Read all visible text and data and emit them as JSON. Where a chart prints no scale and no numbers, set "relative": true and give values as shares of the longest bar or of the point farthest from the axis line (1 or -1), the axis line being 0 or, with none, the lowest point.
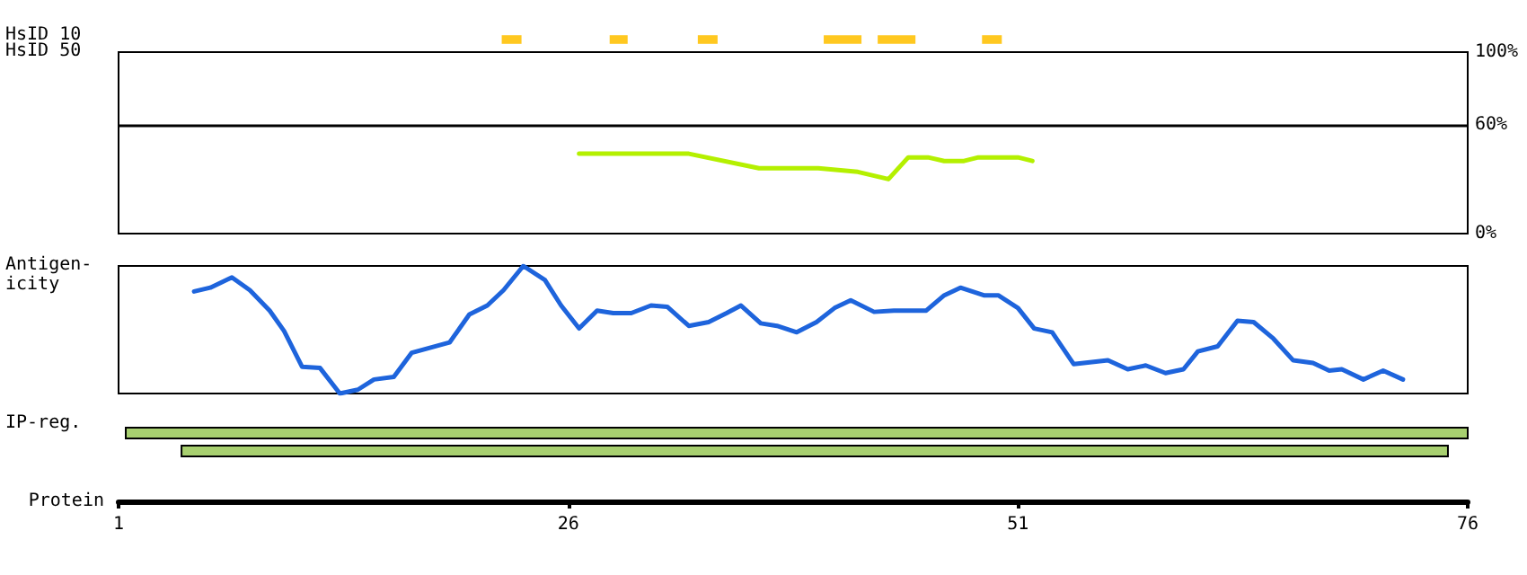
{
  "chart_data": [
    {
      "type": "bar",
      "orientation": "horizontal",
      "ylabel": "HsID 10",
      "categories": [
        null
      ],
      "xlim": [
        1,
        76
      ],
      "tick_labels": false,
      "series": [
        {
          "color": "#ffc820",
          "values": [
            1.1
          ],
          "base": [
            22.3
          ]
        },
        {
          "color": "#ffc820",
          "values": [
            1.0
          ],
          "base": [
            28.3
          ]
        },
        {
          "color": "#ffc820",
          "values": [
            1.1
          ],
          "base": [
            33.2
          ]
        },
        {
          "color": "#ffc820",
          "values": [
            2.1
          ],
          "base": [
            40.2
          ]
        },
        {
          "color": "#ffc820",
          "values": [
            2.1
          ],
          "base": [
            43.2
          ]
        },
        {
          "color": "#ffc820",
          "values": [
            1.1
          ],
          "base": [
            49.0
          ]
        }
      ]
    },
    {
      "type": "line",
      "ylabel": "HsID 50",
      "xlim": [
        1,
        76
      ],
      "ylim": [
        0,
        100
      ],
      "yticks": [
        {
          "value": 0,
          "label": "0%"
        },
        {
          "value": 60,
          "label": "60%"
        },
        {
          "value": 100,
          "label": "100%"
        }
      ],
      "tick_labels": "y",
      "marker": "none",
      "line_style": "solid",
      "ref_lines": [
        {
          "axis": "y",
          "value": 60,
          "label": null,
          "color": "#000000"
        }
      ],
      "series": [
        {
          "color": "#b4f000",
          "x": [
            26.6,
            32.7,
            36.6,
            39.9,
            42.1,
            43.8,
            44.9,
            46.0,
            46.9,
            48.0,
            48.8,
            51.0,
            51.8
          ],
          "values": [
            44,
            44,
            36,
            36,
            34,
            30,
            42,
            42,
            40,
            40,
            42,
            42,
            40
          ]
        }
      ]
    },
    {
      "type": "line",
      "ylabel": "Antigen-icity",
      "xlim": [
        1,
        76
      ],
      "relative": true,
      "tick_labels": false,
      "marker": "none",
      "line_style": "solid",
      "series": [
        {
          "color": "#1e64dc",
          "x": [
            5.2,
            6.1,
            7.3,
            8.3,
            9.4,
            10.2,
            11.2,
            12.2,
            13.3,
            14.3,
            15.2,
            16.3,
            17.3,
            19.4,
            20.5,
            21.5,
            22.4,
            23.5,
            24.7,
            25.6,
            26.6,
            27.6,
            28.5,
            29.5,
            30.6,
            31.5,
            32.7,
            33.8,
            34.8,
            35.6,
            36.7,
            37.6,
            38.7,
            39.8,
            40.8,
            41.7,
            43.0,
            44.1,
            45.9,
            46.9,
            47.8,
            49.1,
            49.9,
            51.0,
            51.9,
            52.9,
            54.1,
            56.0,
            57.1,
            58.1,
            59.2,
            60.2,
            61.0,
            62.1,
            63.2,
            64.1,
            65.2,
            66.3,
            67.4,
            68.3,
            69.0,
            70.2,
            71.3,
            72.4
          ],
          "values": [
            0.8,
            0.83,
            0.91,
            0.81,
            0.65,
            0.49,
            0.21,
            0.2,
            0,
            0.03,
            0.11,
            0.13,
            0.32,
            0.4,
            0.62,
            0.69,
            0.81,
            1,
            0.89,
            0.69,
            0.51,
            0.65,
            0.63,
            0.63,
            0.69,
            0.68,
            0.53,
            0.56,
            0.63,
            0.69,
            0.55,
            0.53,
            0.48,
            0.56,
            0.67,
            0.73,
            0.64,
            0.65,
            0.65,
            0.77,
            0.83,
            0.77,
            0.77,
            0.67,
            0.51,
            0.48,
            0.23,
            0.26,
            0.19,
            0.22,
            0.16,
            0.19,
            0.33,
            0.37,
            0.57,
            0.56,
            0.43,
            0.26,
            0.24,
            0.18,
            0.19,
            0.11,
            0.18,
            0.11
          ]
        }
      ]
    },
    {
      "type": "bar",
      "orientation": "horizontal",
      "ylabel": "IP-reg.",
      "xlabel": "Protein",
      "categories": [
        null,
        null
      ],
      "xlim": [
        1,
        76
      ],
      "xticks": [
        1,
        26,
        51,
        76
      ],
      "tick_labels": "x",
      "series": [
        {
          "color": "#a8d070",
          "values": [
            74.6,
            70.4
          ],
          "base": [
            1.4,
            4.5
          ]
        }
      ]
    }
  ]
}
